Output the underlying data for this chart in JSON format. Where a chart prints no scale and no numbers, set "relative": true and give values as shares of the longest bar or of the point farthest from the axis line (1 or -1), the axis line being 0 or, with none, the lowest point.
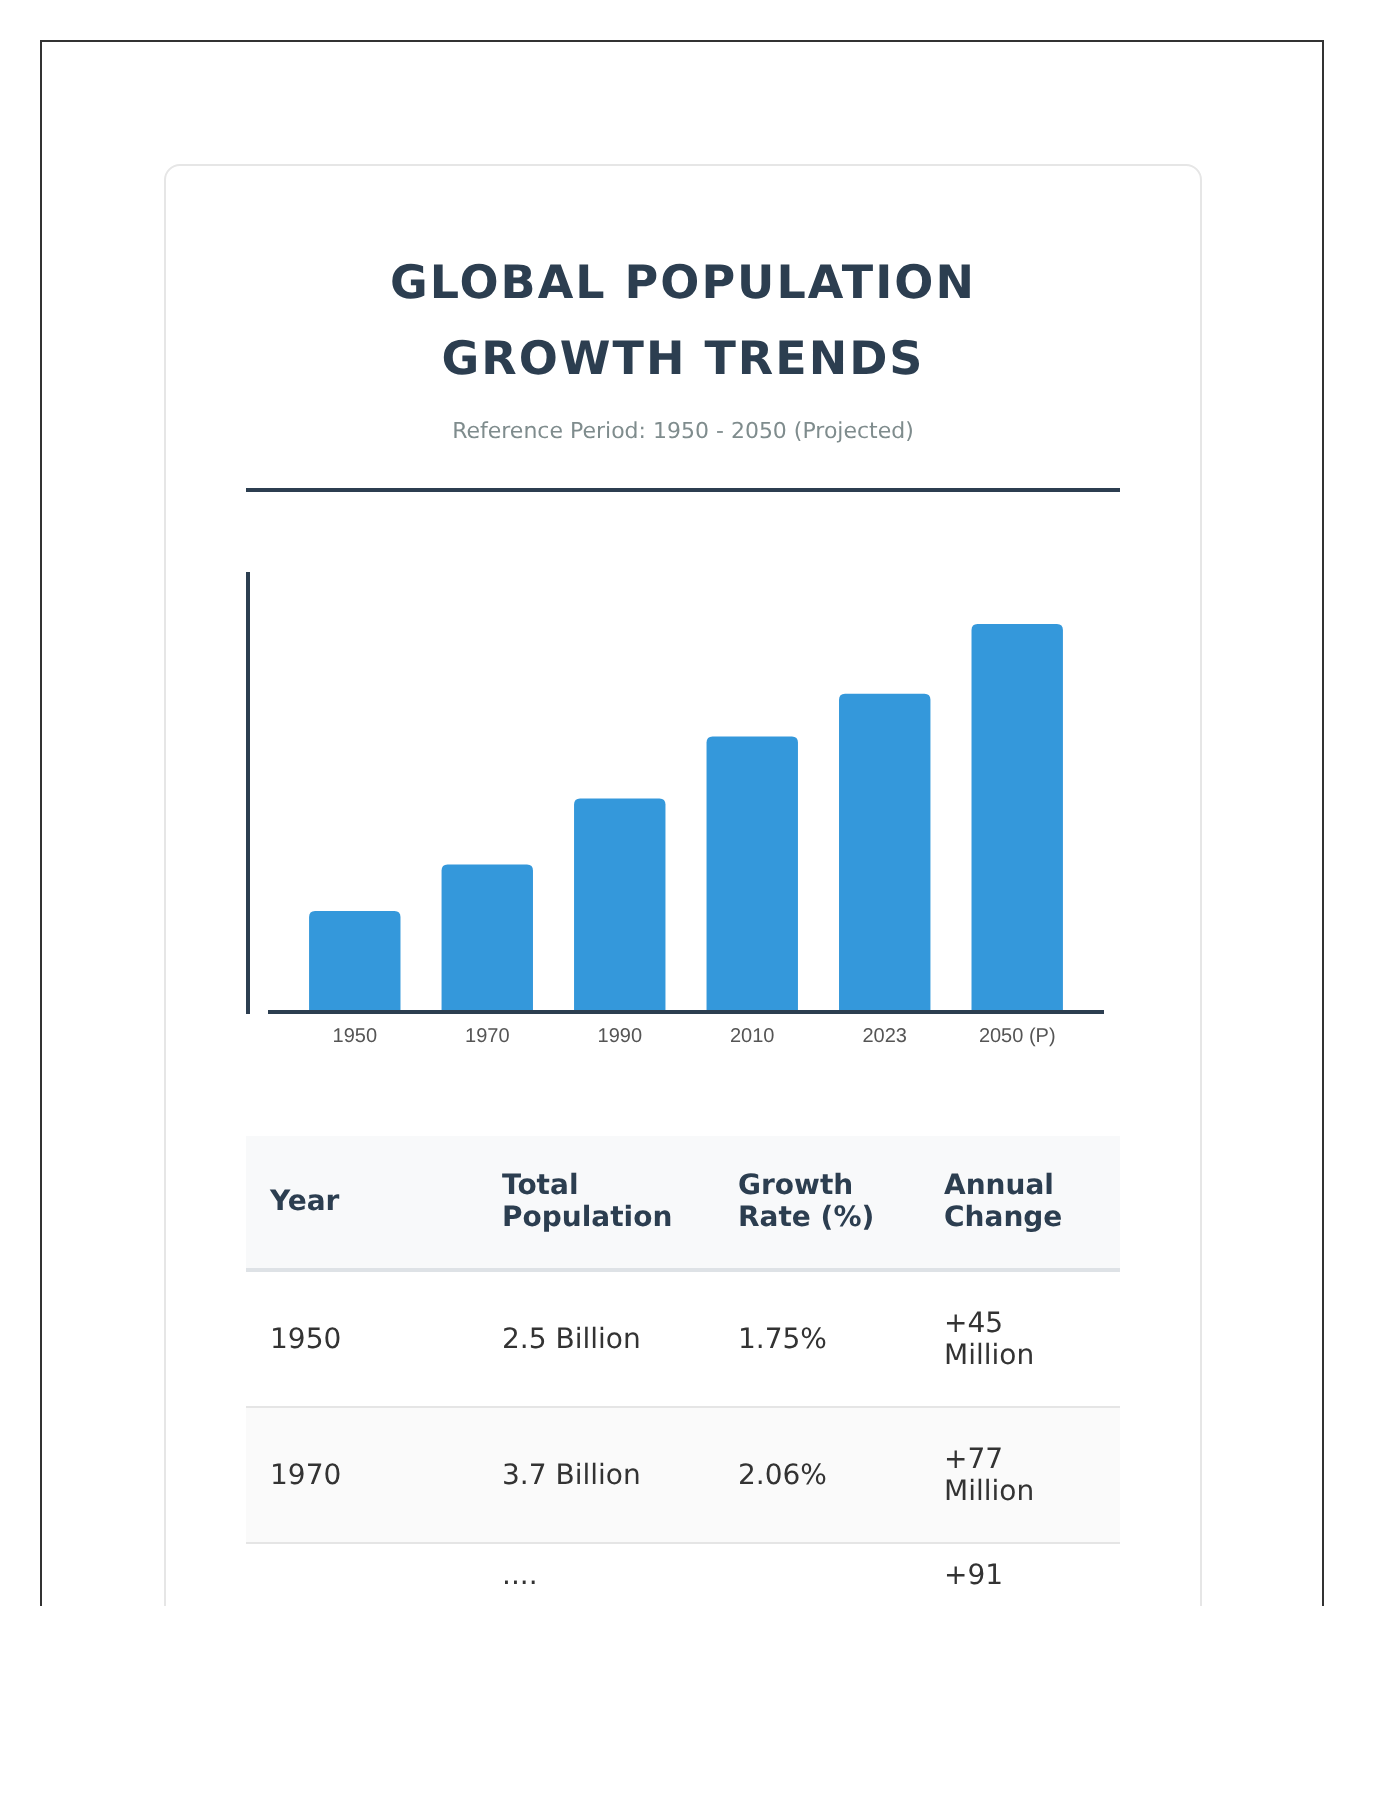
{
  "chart_data": {
    "type": "bar",
    "title": "GLOBAL POPULATION GROWTH TRENDS",
    "subtitle": "Reference Period: 1950 - 2050 (Projected)",
    "categories": [
      "1950",
      "1970",
      "1990",
      "2010",
      "2023",
      "2050 (P)"
    ],
    "values": [
      0.26,
      0.38,
      0.55,
      0.71,
      0.82,
      1
    ],
    "color": "#3498db",
    "relative": true,
    "annotations": [
      "Year",
      "Total Population",
      "Growth Rate (%)",
      "Annual Change",
      "1950",
      "2.5 Billion",
      "1.75%",
      "+45 Million",
      "1970",
      "3.7 Billion",
      "2.06%",
      "+77 Million",
      "....",
      "+91"
    ]
  }
}
